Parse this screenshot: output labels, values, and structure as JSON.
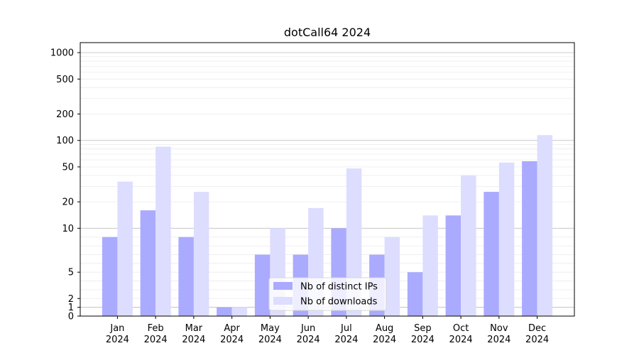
{
  "chart_data": {
    "type": "bar",
    "title": "dotCall64 2024",
    "xlabel": "",
    "ylabel": "",
    "yscale": "symlog",
    "ylim": [
      0,
      1300
    ],
    "yticks": [
      0,
      1,
      2,
      5,
      10,
      20,
      50,
      100,
      200,
      500,
      1000
    ],
    "ytick_labels": [
      "0",
      "1",
      "2",
      "5",
      "10",
      "20",
      "50",
      "100",
      "200",
      "500",
      "1000"
    ],
    "grid": true,
    "legend_position": "lower-center",
    "categories": [
      [
        "Jan",
        "2024"
      ],
      [
        "Feb",
        "2024"
      ],
      [
        "Mar",
        "2024"
      ],
      [
        "Apr",
        "2024"
      ],
      [
        "May",
        "2024"
      ],
      [
        "Jun",
        "2024"
      ],
      [
        "Jul",
        "2024"
      ],
      [
        "Aug",
        "2024"
      ],
      [
        "Sep",
        "2024"
      ],
      [
        "Oct",
        "2024"
      ],
      [
        "Nov",
        "2024"
      ],
      [
        "Dec",
        "2024"
      ]
    ],
    "series": [
      {
        "name": "Nb of distinct IPs",
        "color": "#aaaaff",
        "values": [
          9,
          16,
          9,
          1,
          7,
          7,
          10,
          7,
          5,
          14,
          26,
          58
        ]
      },
      {
        "name": "Nb of downloads",
        "color": "#ddddff",
        "values": [
          34,
          85,
          26,
          1,
          10,
          17,
          48,
          9,
          14,
          40,
          56,
          115
        ]
      }
    ]
  }
}
